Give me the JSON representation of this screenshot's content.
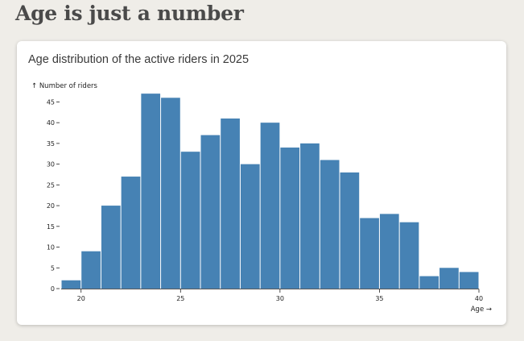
{
  "page": {
    "title": "Age is just a number"
  },
  "chart_data": {
    "type": "bar",
    "title": "Age distribution of the active riders in 2025",
    "xlabel": "Age →",
    "ylabel": "↑ Number of riders",
    "bar_color": "#4682b4",
    "bin_width": 1,
    "bin_starts": [
      19,
      20,
      21,
      22,
      23,
      24,
      25,
      26,
      27,
      28,
      29,
      30,
      31,
      32,
      33,
      34,
      35,
      36,
      37,
      38,
      39
    ],
    "values": [
      2,
      9,
      20,
      27,
      47,
      46,
      33,
      37,
      41,
      30,
      40,
      34,
      35,
      31,
      28,
      17,
      18,
      16,
      3,
      5,
      4
    ],
    "xlim": [
      19,
      40
    ],
    "ylim": [
      0,
      48
    ],
    "x_ticks": [
      "20",
      "25",
      "30",
      "35",
      "40"
    ],
    "y_ticks": [
      "0",
      "5",
      "10",
      "15",
      "20",
      "25",
      "30",
      "35",
      "40",
      "45"
    ],
    "grid": false,
    "legend": "none"
  }
}
